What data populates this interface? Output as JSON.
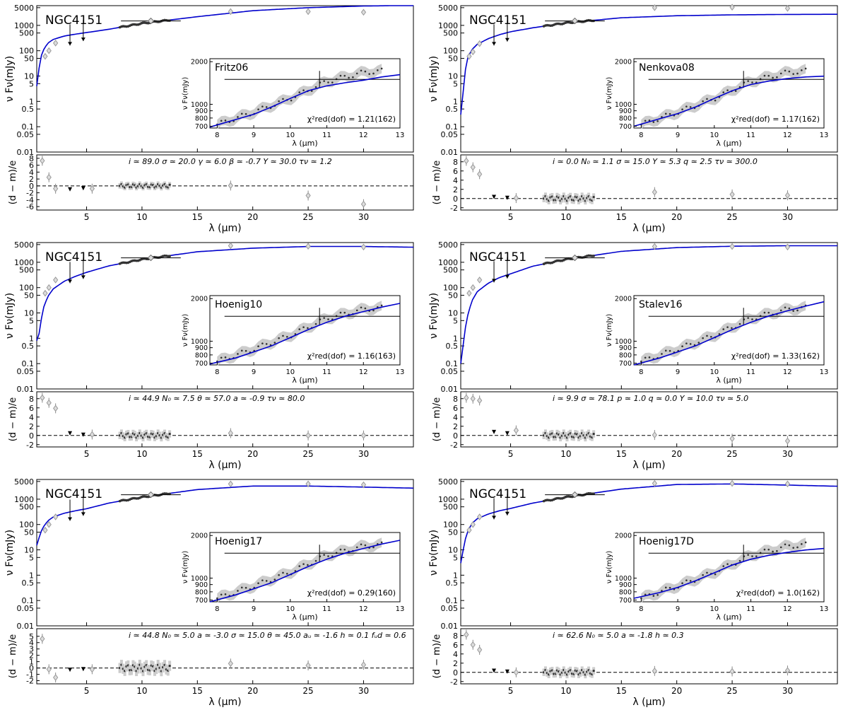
{
  "figure": {
    "object": "NGC4151",
    "sed_ylabel": "ν Fν(mJy)",
    "resid_ylabel": "(d − m)/e",
    "xlabel": "λ (μm)",
    "inset_ylabel": "ν Fν(mJy)",
    "inset_xlabel": "λ (μm)"
  },
  "chart_data": [
    {
      "type": "line",
      "model": "Fritz06",
      "chi2": "χ²red(dof) = 1.21(162)",
      "params": "i ≃ 89.0   σ ≃ 20.0   γ ≃ 6.0   β ≃ -0.7   Y ≃ 30.0   τν ≃ 1.2",
      "model_curve": {
        "x": [
          0.5,
          0.8,
          1,
          1.5,
          2,
          3,
          4,
          5,
          7,
          10,
          15,
          20,
          25,
          30,
          35
        ],
        "y": [
          4,
          40,
          90,
          200,
          280,
          380,
          450,
          520,
          700,
          1200,
          2200,
          3800,
          5000,
          5800,
          6200
        ]
      },
      "photometry": {
        "x": [
          1.26,
          1.6,
          2.2,
          18,
          25,
          30
        ],
        "y": [
          60,
          100,
          200,
          3500,
          3500,
          3300
        ]
      },
      "upper_limits": {
        "x": [
          3.5,
          4.7
        ],
        "y": [
          160,
          240
        ]
      },
      "resid_ylim": [
        -7,
        9
      ],
      "resid_ticks": [
        -6,
        -4,
        -2,
        0,
        2,
        4,
        6,
        8
      ],
      "residuals": {
        "x": [
          1,
          1.6,
          2.2,
          3.5,
          4.7,
          5.5,
          18,
          25,
          30
        ],
        "y": [
          7.3,
          2.5,
          -0.8,
          -1.2,
          -0.9,
          -0.8,
          0.1,
          -2.8,
          -5.3
        ]
      },
      "inset_model": {
        "x": [
          7.8,
          8.5,
          9,
          9.5,
          10,
          10.5,
          11,
          11.5,
          12,
          12.5,
          13
        ],
        "y": [
          690,
          780,
          850,
          960,
          1100,
          1250,
          1350,
          1420,
          1480,
          1560,
          1620
        ]
      }
    },
    {
      "type": "line",
      "model": "Nenkova08",
      "chi2": "χ²red(dof) = 1.17(162)",
      "params": "i ≃ 0.0   N₀ ≃ 1.1   σ ≃ 15.0   Y ≃ 5.3   q ≃ 2.5   τν ≃ 300.0",
      "model_curve": {
        "x": [
          0.5,
          0.8,
          1,
          1.5,
          2,
          3,
          4,
          5,
          7,
          10,
          15,
          20,
          25,
          30,
          35
        ],
        "y": [
          0.3,
          5,
          40,
          110,
          180,
          300,
          430,
          560,
          800,
          1250,
          2000,
          2400,
          2600,
          2700,
          2750
        ]
      },
      "photometry": {
        "x": [
          1.26,
          1.6,
          2.2,
          18,
          25,
          30
        ],
        "y": [
          60,
          90,
          190,
          5000,
          5200,
          4700
        ]
      },
      "upper_limits": {
        "x": [
          3.5,
          4.7
        ],
        "y": [
          160,
          230
        ]
      },
      "resid_ylim": [
        -2.5,
        9.5
      ],
      "resid_ticks": [
        -2,
        0,
        2,
        4,
        6,
        8
      ],
      "residuals": {
        "x": [
          1,
          1.6,
          2.2,
          3.5,
          4.7,
          5.5,
          18,
          25,
          30
        ],
        "y": [
          8.2,
          6.8,
          5.3,
          0.2,
          0,
          0.1,
          1.4,
          0.9,
          0.7
        ]
      },
      "inset_model": {
        "x": [
          7.8,
          8.5,
          9,
          9.5,
          10,
          10.5,
          11,
          11.5,
          12,
          12.5,
          13
        ],
        "y": [
          700,
          790,
          860,
          960,
          1100,
          1250,
          1380,
          1460,
          1520,
          1560,
          1580
        ]
      }
    },
    {
      "type": "line",
      "model": "Hoenig10",
      "chi2": "χ²red(dof) = 1.16(163)",
      "params": "i ≃ 44.9   N₀ ≃ 7.5   θ ≃ 57.0   a ≃ -0.9   τν ≃ 80.0",
      "model_curve": {
        "x": [
          0.5,
          0.8,
          1,
          1.5,
          2,
          3,
          4,
          5,
          7,
          10,
          15,
          20,
          25,
          30,
          35
        ],
        "y": [
          0.8,
          2,
          12,
          45,
          90,
          180,
          280,
          400,
          720,
          1300,
          2600,
          3600,
          4200,
          4200,
          3900
        ]
      },
      "photometry": {
        "x": [
          1.26,
          1.6,
          2.2,
          18,
          25,
          30
        ],
        "y": [
          60,
          100,
          200,
          4500,
          4300,
          4000
        ]
      },
      "upper_limits": {
        "x": [
          3.5,
          4.7
        ],
        "y": [
          150,
          220
        ]
      },
      "resid_ylim": [
        -2.5,
        9.5
      ],
      "resid_ticks": [
        -2,
        0,
        2,
        4,
        6,
        8
      ],
      "residuals": {
        "x": [
          1,
          1.6,
          2.2,
          3.5,
          4.7,
          5.5,
          18,
          25,
          30
        ],
        "y": [
          8.2,
          7.1,
          5.9,
          0.3,
          0,
          0.2,
          0.5,
          0,
          0
        ]
      },
      "inset_model": {
        "x": [
          7.8,
          8.5,
          9,
          9.5,
          10,
          10.5,
          11,
          11.5,
          12,
          12.5,
          13
        ],
        "y": [
          690,
          760,
          840,
          930,
          1060,
          1210,
          1360,
          1500,
          1620,
          1740,
          1850
        ]
      }
    },
    {
      "type": "line",
      "model": "Stalev16",
      "chi2": "χ²red(dof) = 1.33(162)",
      "params": "i ≃ 9.9   σ ≃ 78.1   p ≃ 1.0   q ≃ 0.0   Y ≃ 10.0   τν ≃ 5.0",
      "model_curve": {
        "x": [
          0.5,
          0.8,
          1,
          1.5,
          2,
          3,
          4,
          5,
          7,
          10,
          15,
          20,
          25,
          30,
          35
        ],
        "y": [
          0.1,
          1,
          5,
          30,
          70,
          150,
          250,
          350,
          700,
          1300,
          2700,
          3800,
          4300,
          4500,
          4500
        ]
      },
      "photometry": {
        "x": [
          1.26,
          1.6,
          2.2,
          18,
          25,
          30
        ],
        "y": [
          60,
          100,
          200,
          4200,
          4200,
          4000
        ]
      },
      "upper_limits": {
        "x": [
          3.5,
          4.7
        ],
        "y": [
          160,
          230
        ]
      },
      "resid_ylim": [
        -2.5,
        9.5
      ],
      "resid_ticks": [
        -2,
        0,
        2,
        4,
        6,
        8
      ],
      "residuals": {
        "x": [
          1,
          1.6,
          2.2,
          3.5,
          4.7,
          5.5,
          18,
          25,
          30
        ],
        "y": [
          8.2,
          8.0,
          7.6,
          0.6,
          0.3,
          1.1,
          0.1,
          -0.7,
          -1.2
        ]
      },
      "inset_model": {
        "x": [
          7.8,
          8.5,
          9,
          9.5,
          10,
          10.5,
          11,
          11.5,
          12,
          12.5,
          13
        ],
        "y": [
          680,
          760,
          840,
          930,
          1060,
          1210,
          1360,
          1510,
          1640,
          1770,
          1900
        ]
      }
    },
    {
      "type": "line",
      "model": "Hoenig17",
      "chi2": "χ²red(dof) = 0.29(160)",
      "params": "i ≃ 44.8   N₀ ≃ 5.0   a ≃ -3.0   σ ≃ 15.0   θ ≃ 45.0   aᵤ ≃ -1.6   h ≃ 0.1   fᵤd ≃ 0.6",
      "model_curve": {
        "x": [
          0.5,
          0.8,
          1,
          1.5,
          2,
          3,
          4,
          5,
          7,
          10,
          15,
          20,
          25,
          30,
          35
        ],
        "y": [
          15,
          40,
          70,
          140,
          200,
          280,
          350,
          420,
          700,
          1200,
          2400,
          3300,
          3300,
          3000,
          2700
        ]
      },
      "photometry": {
        "x": [
          1.26,
          1.6,
          2.2,
          18,
          25,
          30
        ],
        "y": [
          60,
          100,
          200,
          4000,
          4000,
          3700
        ]
      },
      "upper_limits": {
        "x": [
          3.5,
          4.7
        ],
        "y": [
          140,
          220
        ]
      },
      "resid_ylim": [
        -2.5,
        6.2
      ],
      "resid_ticks": [
        -2,
        -1,
        0,
        1,
        2,
        3,
        4,
        5
      ],
      "residuals": {
        "x": [
          1,
          1.6,
          2.2,
          3.5,
          4.7,
          5.5,
          18,
          25,
          30
        ],
        "y": [
          4.6,
          -0.2,
          -1.5,
          -0.4,
          -0.3,
          -0.2,
          0.7,
          0.4,
          0.5
        ]
      },
      "inset_model": {
        "x": [
          7.8,
          8.5,
          9,
          9.5,
          10,
          10.5,
          11,
          11.5,
          12,
          12.5,
          13
        ],
        "y": [
          680,
          760,
          840,
          930,
          1060,
          1210,
          1360,
          1500,
          1620,
          1740,
          1850
        ]
      }
    },
    {
      "type": "line",
      "model": "Hoenig17D",
      "chi2": "χ²red(dof) = 1.0(162)",
      "params": "i ≃ 62.6   N₀ ≃ 5.0   a ≃ -1.8   h ≃ 0.3",
      "model_curve": {
        "x": [
          0.5,
          0.8,
          1,
          1.5,
          2,
          3,
          4,
          5,
          7,
          10,
          15,
          20,
          25,
          30,
          35
        ],
        "y": [
          3,
          15,
          40,
          110,
          170,
          260,
          350,
          430,
          700,
          1200,
          2500,
          3800,
          4000,
          3600,
          3200
        ]
      },
      "photometry": {
        "x": [
          1.26,
          1.6,
          2.2,
          18,
          25,
          30
        ],
        "y": [
          60,
          100,
          200,
          4200,
          4200,
          4000
        ]
      },
      "upper_limits": {
        "x": [
          3.5,
          4.7
        ],
        "y": [
          160,
          230
        ]
      },
      "resid_ylim": [
        -2.5,
        9.5
      ],
      "resid_ticks": [
        -2,
        0,
        2,
        4,
        6,
        8
      ],
      "residuals": {
        "x": [
          1,
          1.6,
          2.2,
          3.5,
          4.7,
          5.5,
          18,
          25,
          30
        ],
        "y": [
          8.2,
          6.0,
          4.9,
          0.2,
          0,
          0,
          0.3,
          0.2,
          0.4
        ]
      },
      "inset_model": {
        "x": [
          7.8,
          8.5,
          9,
          9.5,
          10,
          10.5,
          11,
          11.5,
          12,
          12.5,
          13
        ],
        "y": [
          720,
          790,
          860,
          960,
          1090,
          1240,
          1360,
          1450,
          1520,
          1580,
          1620
        ]
      }
    }
  ],
  "shared": {
    "xlim": [
      0.5,
      34.5
    ],
    "x_ticks": [
      5,
      10,
      15,
      20,
      25,
      30
    ],
    "sed_ylim": [
      0.01,
      6000
    ],
    "sed_ticks": [
      0.01,
      0.05,
      0.1,
      0.5,
      1,
      5,
      10,
      50,
      100,
      500,
      1000,
      5000
    ],
    "inset_xlim": [
      7.8,
      13
    ],
    "inset_x_ticks": [
      8,
      9,
      10,
      11,
      12,
      13
    ],
    "inset_ylim": [
      680,
      2100
    ],
    "inset_y_ticks": [
      700,
      800,
      900,
      1000,
      2000
    ],
    "spectrum_x_range": [
      8,
      12.5
    ],
    "broad_points": [
      {
        "x": 10.8,
        "y": 1500,
        "xerr": 2.7
      }
    ],
    "colors": {
      "model": "#0000cc",
      "data": "#333333",
      "band": "#cccccc",
      "marker": "#999999"
    }
  }
}
